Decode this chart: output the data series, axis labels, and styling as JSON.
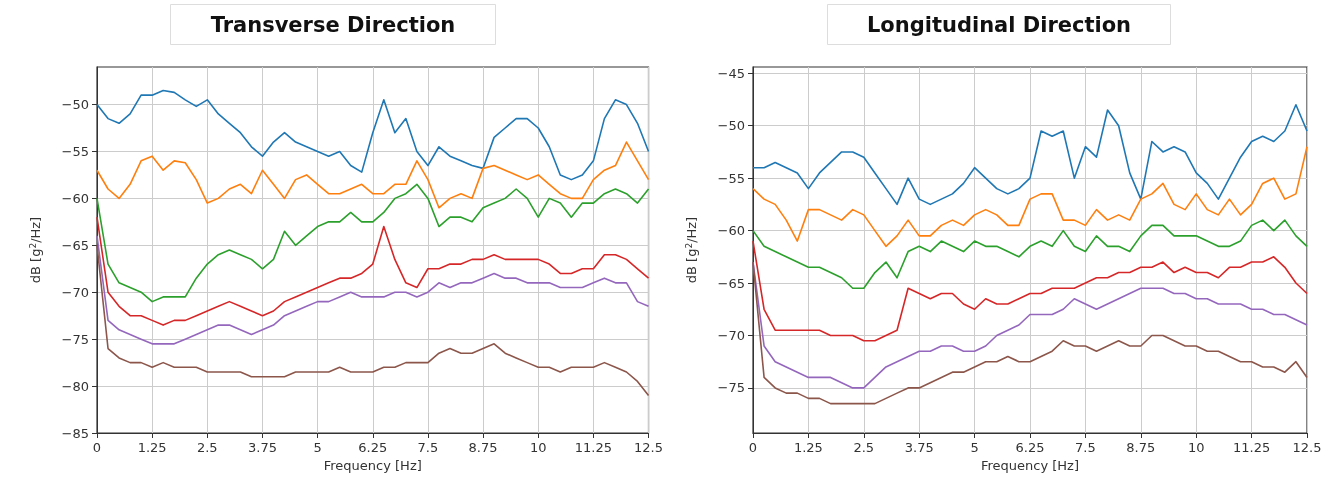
{
  "chart_data": [
    {
      "type": "line",
      "title": "Transverse Direction",
      "xlabel": "Frequency [Hz]",
      "ylabel": "dB [g$^{2}$/Hz]",
      "x": [
        0,
        0.25,
        0.5,
        0.75,
        1,
        1.25,
        1.5,
        1.75,
        2,
        2.25,
        2.5,
        2.75,
        3,
        3.25,
        3.5,
        3.75,
        4,
        4.25,
        4.5,
        4.75,
        5,
        5.25,
        5.5,
        5.75,
        6,
        6.25,
        6.5,
        6.75,
        7,
        7.25,
        7.5,
        7.75,
        8,
        8.25,
        8.5,
        8.75,
        9,
        9.25,
        9.5,
        9.75,
        10,
        10.25,
        10.5,
        10.75,
        11,
        11.25,
        11.5,
        11.75,
        12,
        12.25,
        12.5
      ],
      "xlim": [
        0,
        12.5
      ],
      "xticks": [
        0,
        1.25,
        2.5,
        3.75,
        5,
        6.25,
        7.5,
        8.75,
        10,
        11.25,
        12.5
      ],
      "ylim": [
        -85,
        -46
      ],
      "yticks": [
        -85,
        -80,
        -75,
        -70,
        -65,
        -60,
        -55,
        -50
      ],
      "grid": true,
      "marker": "none",
      "line_style": "solid",
      "series": [
        {
          "color": "#1f77b4",
          "values": [
            -50,
            -51.5,
            -52,
            -51,
            -49,
            -49,
            -48.5,
            -48.7,
            -49.5,
            -50.2,
            -49.5,
            -51,
            -52,
            -53,
            -54.5,
            -55.5,
            -54,
            -53,
            -54,
            -54.5,
            -55,
            -55.5,
            -55,
            -56.5,
            -57.2,
            -53,
            -49.5,
            -53,
            -51.5,
            -55,
            -56.5,
            -54.5,
            -55.5,
            -56,
            -56.5,
            -56.8,
            -53.5,
            -52.5,
            -51.5,
            -51.5,
            -52.5,
            -54.5,
            -57.5,
            -58,
            -57.5,
            -56,
            -51.5,
            -49.5,
            -50,
            -52,
            -55
          ]
        },
        {
          "color": "#ff7f0e",
          "values": [
            -57,
            -59,
            -60,
            -58.5,
            -56,
            -55.5,
            -57,
            -56,
            -56.2,
            -58,
            -60.5,
            -60,
            -59,
            -58.5,
            -59.5,
            -57,
            -58.5,
            -60,
            -58,
            -57.5,
            -58.5,
            -59.5,
            -59.5,
            -59,
            -58.5,
            -59.5,
            -59.5,
            -58.5,
            -58.5,
            -56,
            -58,
            -61,
            -60,
            -59.5,
            -60,
            -56.8,
            -56.5,
            -57,
            -57.5,
            -58,
            -57.5,
            -58.5,
            -59.5,
            -60,
            -60,
            -58,
            -57,
            -56.5,
            -54,
            -56,
            -58
          ]
        },
        {
          "color": "#2ca02c",
          "values": [
            -60,
            -67,
            -69,
            -69.5,
            -70,
            -71,
            -70.5,
            -70.5,
            -70.5,
            -68.5,
            -67,
            -66,
            -65.5,
            -66,
            -66.5,
            -67.5,
            -66.5,
            -63.5,
            -65,
            -64,
            -63,
            -62.5,
            -62.5,
            -61.5,
            -62.5,
            -62.5,
            -61.5,
            -60,
            -59.5,
            -58.5,
            -60,
            -63,
            -62,
            -62,
            -62.5,
            -61,
            -60.5,
            -60,
            -59,
            -60,
            -62,
            -60,
            -60.5,
            -62,
            -60.5,
            -60.5,
            -59.5,
            -59,
            -59.5,
            -60.5,
            -59
          ]
        },
        {
          "color": "#d62728",
          "values": [
            -62,
            -70,
            -71.5,
            -72.5,
            -72.5,
            -73,
            -73.5,
            -73,
            -73,
            -72.5,
            -72,
            -71.5,
            -71,
            -71.5,
            -72,
            -72.5,
            -72,
            -71,
            -70.5,
            -70,
            -69.5,
            -69,
            -68.5,
            -68.5,
            -68,
            -67,
            -63,
            -66.5,
            -69,
            -69.5,
            -67.5,
            -67.5,
            -67,
            -67,
            -66.5,
            -66.5,
            -66,
            -66.5,
            -66.5,
            -66.5,
            -66.5,
            -67,
            -68,
            -68,
            -67.5,
            -67.5,
            -66,
            -66,
            -66.5,
            -67.5,
            -68.5
          ]
        },
        {
          "color": "#9467bd",
          "values": [
            -64,
            -73,
            -74,
            -74.5,
            -75,
            -75.5,
            -75.5,
            -75.5,
            -75,
            -74.5,
            -74,
            -73.5,
            -73.5,
            -74,
            -74.5,
            -74,
            -73.5,
            -72.5,
            -72,
            -71.5,
            -71,
            -71,
            -70.5,
            -70,
            -70.5,
            -70.5,
            -70.5,
            -70,
            -70,
            -70.5,
            -70,
            -69,
            -69.5,
            -69,
            -69,
            -68.5,
            -68,
            -68.5,
            -68.5,
            -69,
            -69,
            -69,
            -69.5,
            -69.5,
            -69.5,
            -69,
            -68.5,
            -69,
            -69,
            -71,
            -71.5
          ]
        },
        {
          "color": "#8c564b",
          "values": [
            -65,
            -76,
            -77,
            -77.5,
            -77.5,
            -78,
            -77.5,
            -78,
            -78,
            -78,
            -78.5,
            -78.5,
            -78.5,
            -78.5,
            -79,
            -79,
            -79,
            -79,
            -78.5,
            -78.5,
            -78.5,
            -78.5,
            -78,
            -78.5,
            -78.5,
            -78.5,
            -78,
            -78,
            -77.5,
            -77.5,
            -77.5,
            -76.5,
            -76,
            -76.5,
            -76.5,
            -76,
            -75.5,
            -76.5,
            -77,
            -77.5,
            -78,
            -78,
            -78.5,
            -78,
            -78,
            -78,
            -77.5,
            -78,
            -78.5,
            -79.5,
            -81
          ]
        }
      ]
    },
    {
      "type": "line",
      "title": "Longitudinal Direction",
      "xlabel": "Frequency [Hz]",
      "ylabel": "dB [g$^{2}$/Hz]",
      "x": [
        0,
        0.25,
        0.5,
        0.75,
        1,
        1.25,
        1.5,
        1.75,
        2,
        2.25,
        2.5,
        2.75,
        3,
        3.25,
        3.5,
        3.75,
        4,
        4.25,
        4.5,
        4.75,
        5,
        5.25,
        5.5,
        5.75,
        6,
        6.25,
        6.5,
        6.75,
        7,
        7.25,
        7.5,
        7.75,
        8,
        8.25,
        8.5,
        8.75,
        9,
        9.25,
        9.5,
        9.75,
        10,
        10.25,
        10.5,
        10.75,
        11,
        11.25,
        11.5,
        11.75,
        12,
        12.25,
        12.5
      ],
      "xlim": [
        0,
        12.5
      ],
      "xticks": [
        0,
        1.25,
        2.5,
        3.75,
        5,
        6.25,
        7.5,
        8.75,
        10,
        11.25,
        12.5
      ],
      "ylim": [
        -79.3,
        -44.4
      ],
      "yticks": [
        -75,
        -70,
        -65,
        -60,
        -55,
        -50,
        -45
      ],
      "grid": true,
      "marker": "none",
      "line_style": "solid",
      "series": [
        {
          "color": "#1f77b4",
          "values": [
            -54,
            -54,
            -53.5,
            -54,
            -54.5,
            -56,
            -54.5,
            -53.5,
            -52.5,
            -52.5,
            -53,
            -54.5,
            -56,
            -57.5,
            -55,
            -57,
            -57.5,
            -57,
            -56.5,
            -55.5,
            -54,
            -55,
            -56,
            -56.5,
            -56,
            -55,
            -50.5,
            -51,
            -50.5,
            -55,
            -52,
            -53,
            -48.5,
            -50,
            -54.5,
            -57,
            -51.5,
            -52.5,
            -52,
            -52.5,
            -54.5,
            -55.5,
            -57,
            -55,
            -53,
            -51.5,
            -51,
            -51.5,
            -50.5,
            -48,
            -50.5
          ]
        },
        {
          "color": "#ff7f0e",
          "values": [
            -56,
            -57,
            -57.5,
            -59,
            -61,
            -58,
            -58,
            -58.5,
            -59,
            -58,
            -58.5,
            -60,
            -61.5,
            -60.5,
            -59,
            -60.5,
            -60.5,
            -59.5,
            -59,
            -59.5,
            -58.5,
            -58,
            -58.5,
            -59.5,
            -59.5,
            -57,
            -56.5,
            -56.5,
            -59,
            -59,
            -59.5,
            -58,
            -59,
            -58.5,
            -59,
            -57,
            -56.5,
            -55.5,
            -57.5,
            -58,
            -56.5,
            -58,
            -58.5,
            -57,
            -58.5,
            -57.5,
            -55.5,
            -55,
            -57,
            -56.5,
            -52
          ]
        },
        {
          "color": "#2ca02c",
          "values": [
            -60,
            -61.5,
            -62,
            -62.5,
            -63,
            -63.5,
            -63.5,
            -64,
            -64.5,
            -65.5,
            -65.5,
            -64,
            -63,
            -64.5,
            -62,
            -61.5,
            -62,
            -61,
            -61.5,
            -62,
            -61,
            -61.5,
            -61.5,
            -62,
            -62.5,
            -61.5,
            -61,
            -61.5,
            -60,
            -61.5,
            -62,
            -60.5,
            -61.5,
            -61.5,
            -62,
            -60.5,
            -59.5,
            -59.5,
            -60.5,
            -60.5,
            -60.5,
            -61,
            -61.5,
            -61.5,
            -61,
            -59.5,
            -59,
            -60,
            -59,
            -60.5,
            -61.5
          ]
        },
        {
          "color": "#d62728",
          "values": [
            -61,
            -67.5,
            -69.5,
            -69.5,
            -69.5,
            -69.5,
            -69.5,
            -70,
            -70,
            -70,
            -70.5,
            -70.5,
            -70,
            -69.5,
            -65.5,
            -66,
            -66.5,
            -66,
            -66,
            -67,
            -67.5,
            -66.5,
            -67,
            -67,
            -66.5,
            -66,
            -66,
            -65.5,
            -65.5,
            -65.5,
            -65,
            -64.5,
            -64.5,
            -64,
            -64,
            -63.5,
            -63.5,
            -63,
            -64,
            -63.5,
            -64,
            -64,
            -64.5,
            -63.5,
            -63.5,
            -63,
            -63,
            -62.5,
            -63.5,
            -65,
            -66
          ]
        },
        {
          "color": "#9467bd",
          "values": [
            -63,
            -71,
            -72.5,
            -73,
            -73.5,
            -74,
            -74,
            -74,
            -74.5,
            -75,
            -75,
            -74,
            -73,
            -72.5,
            -72,
            -71.5,
            -71.5,
            -71,
            -71,
            -71.5,
            -71.5,
            -71,
            -70,
            -69.5,
            -69,
            -68,
            -68,
            -68,
            -67.5,
            -66.5,
            -67,
            -67.5,
            -67,
            -66.5,
            -66,
            -65.5,
            -65.5,
            -65.5,
            -66,
            -66,
            -66.5,
            -66.5,
            -67,
            -67,
            -67,
            -67.5,
            -67.5,
            -68,
            -68,
            -68.5,
            -69
          ]
        },
        {
          "color": "#8c564b",
          "values": [
            -63,
            -74,
            -75,
            -75.5,
            -75.5,
            -76,
            -76,
            -76.5,
            -76.5,
            -76.5,
            -76.5,
            -76.5,
            -76,
            -75.5,
            -75,
            -75,
            -74.5,
            -74,
            -73.5,
            -73.5,
            -73,
            -72.5,
            -72.5,
            -72,
            -72.5,
            -72.5,
            -72,
            -71.5,
            -70.5,
            -71,
            -71,
            -71.5,
            -71,
            -70.5,
            -71,
            -71,
            -70,
            -70,
            -70.5,
            -71,
            -71,
            -71.5,
            -71.5,
            -72,
            -72.5,
            -72.5,
            -73,
            -73,
            -73.5,
            -72.5,
            -74
          ]
        }
      ]
    }
  ]
}
